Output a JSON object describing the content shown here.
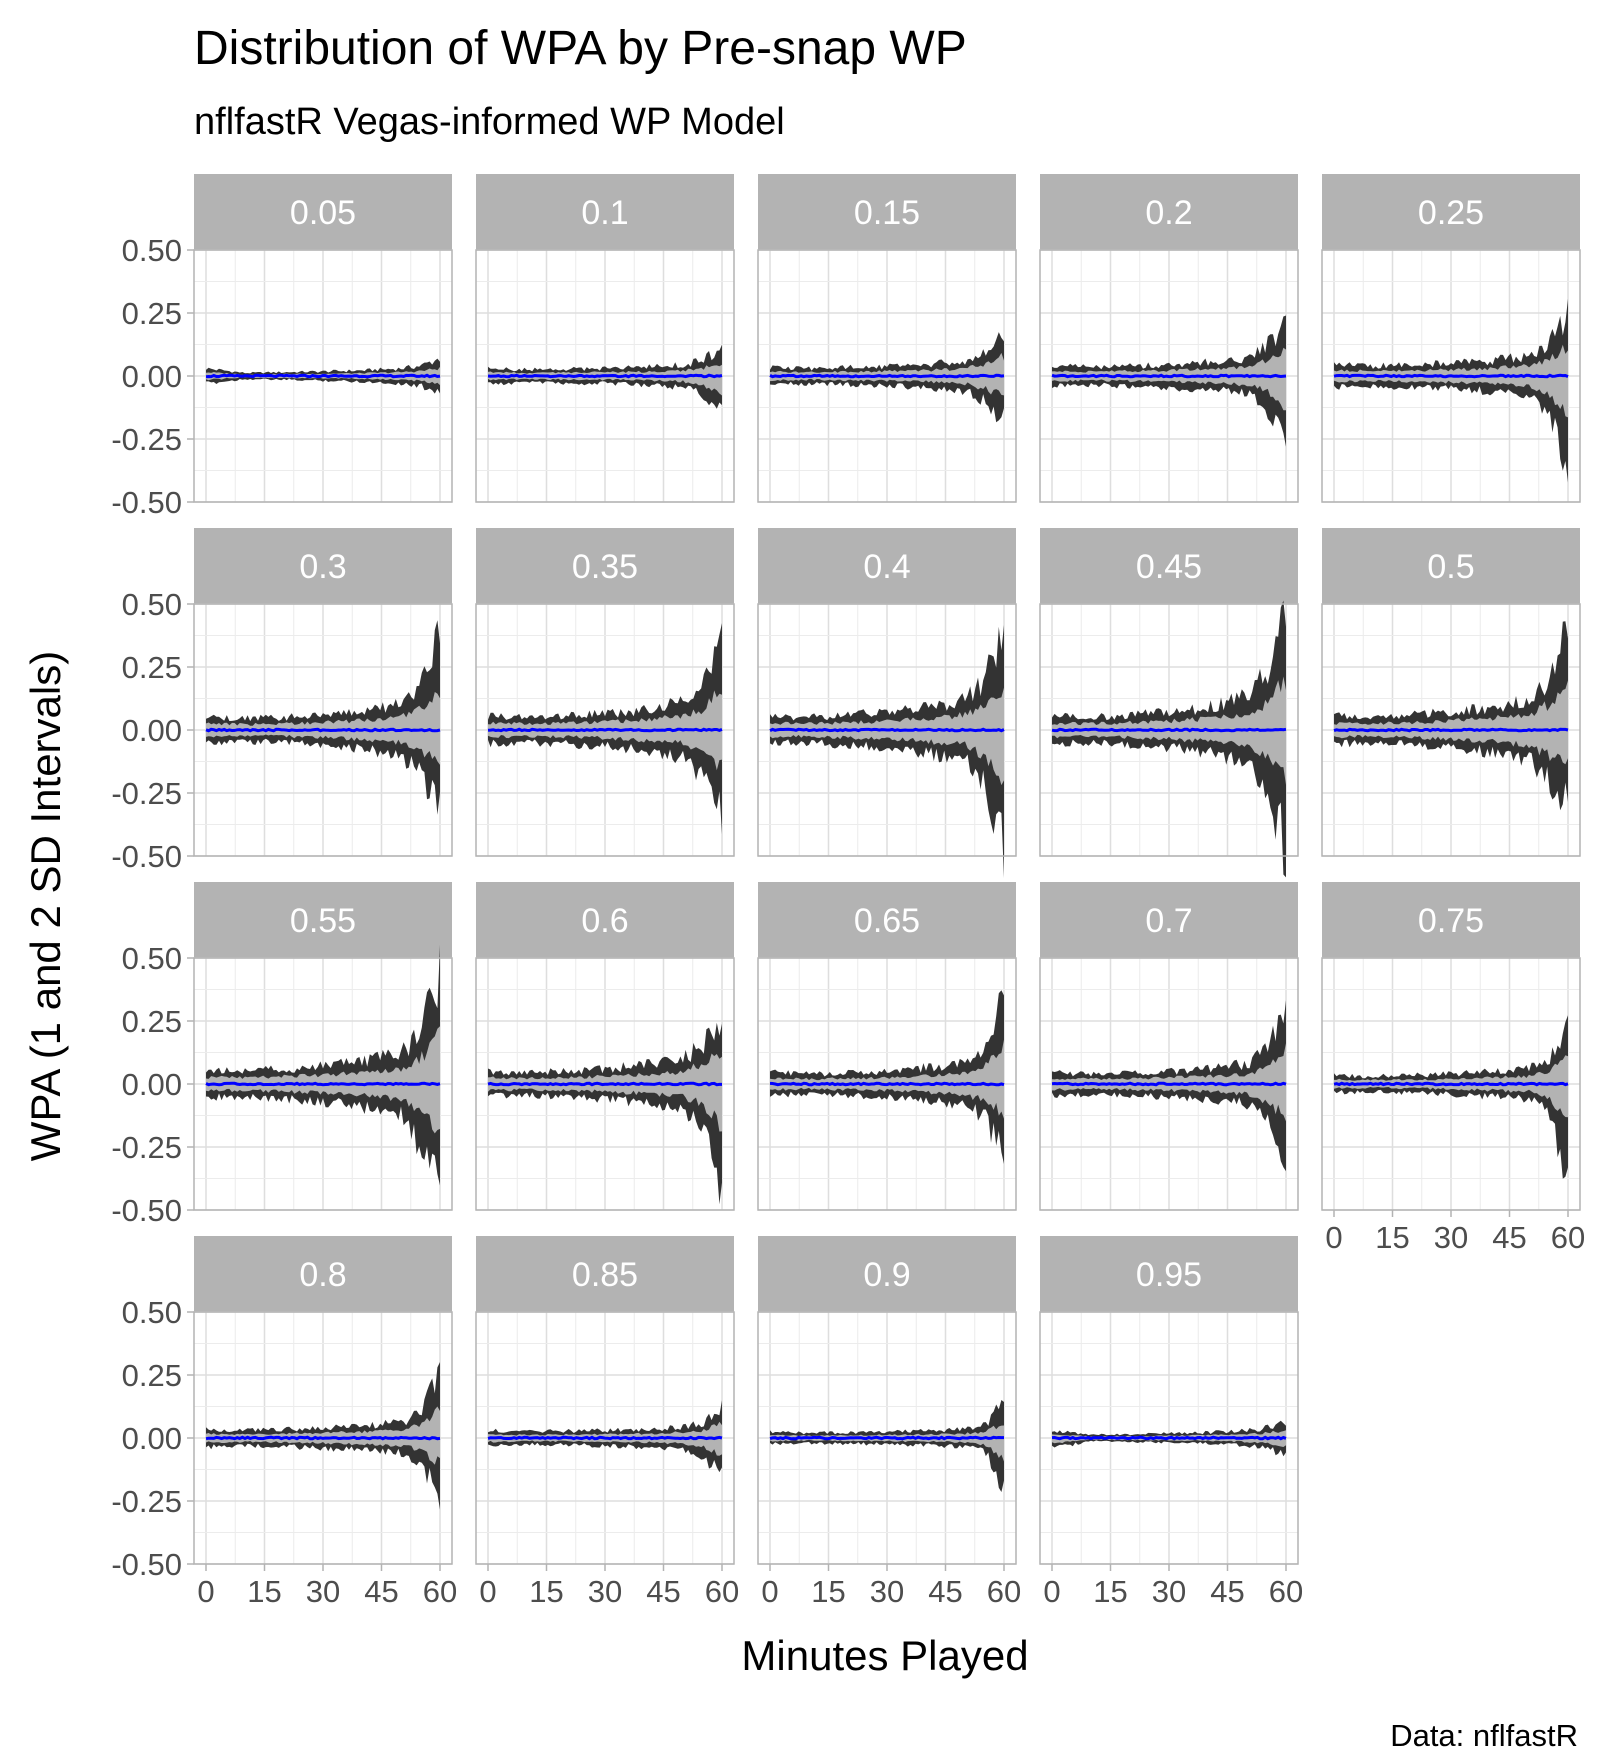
{
  "chart": {
    "title": "Distribution of WPA by Pre-snap WP",
    "subtitle": "nflfastR Vegas-informed WP Model",
    "caption": "Data: nflfastR",
    "xlabel": "Minutes Played",
    "ylabel": "WPA (1 and 2 SD Intervals)",
    "x_ticks": [
      "0",
      "15",
      "30",
      "45",
      "60"
    ],
    "y_ticks": [
      "0.50",
      "0.25",
      "0.00",
      "-0.25",
      "-0.50"
    ]
  },
  "chart_data": {
    "type": "area",
    "facet_by": "pre-snap WP",
    "xlim": [
      0,
      60
    ],
    "ylim": [
      -0.5,
      0.5
    ],
    "x_ticks": [
      0,
      15,
      30,
      45,
      60
    ],
    "y_ticks": [
      0.5,
      0.25,
      0,
      -0.25,
      -0.5
    ],
    "grid": true,
    "colors": {
      "two_sd_band": "#333333",
      "one_sd_band": "#b3b3b3",
      "mean_line": "#0000ff",
      "strip": "#b3b3b3"
    },
    "x": [
      0,
      10,
      20,
      30,
      40,
      50,
      55,
      60
    ],
    "panels": [
      {
        "label": "0.05",
        "mean": [
          0,
          0,
          0,
          0,
          0,
          0,
          0,
          0
        ],
        "upper_2sd": [
          0.03,
          0.012,
          0.015,
          0.018,
          0.022,
          0.03,
          0.04,
          0.07
        ],
        "lower_2sd": [
          -0.03,
          -0.012,
          -0.015,
          -0.018,
          -0.022,
          -0.03,
          -0.04,
          -0.06
        ],
        "upper_1sd": [
          0.015,
          0.006,
          0.008,
          0.009,
          0.011,
          0.015,
          0.02,
          0.03
        ],
        "lower_1sd": [
          -0.015,
          -0.006,
          -0.008,
          -0.009,
          -0.011,
          -0.015,
          -0.02,
          -0.03
        ]
      },
      {
        "label": "0.1",
        "mean": [
          0,
          0,
          0,
          0,
          0,
          0,
          0,
          0
        ],
        "upper_2sd": [
          0.03,
          0.025,
          0.028,
          0.03,
          0.035,
          0.045,
          0.06,
          0.11
        ],
        "lower_2sd": [
          -0.03,
          -0.025,
          -0.028,
          -0.03,
          -0.035,
          -0.045,
          -0.07,
          -0.15
        ],
        "upper_1sd": [
          0.015,
          0.012,
          0.014,
          0.015,
          0.017,
          0.022,
          0.03,
          0.05
        ],
        "lower_1sd": [
          -0.015,
          -0.012,
          -0.014,
          -0.015,
          -0.017,
          -0.022,
          -0.035,
          -0.07
        ]
      },
      {
        "label": "0.15",
        "mean": [
          0,
          0,
          0,
          0,
          0,
          0,
          0,
          0
        ],
        "upper_2sd": [
          0.035,
          0.03,
          0.035,
          0.038,
          0.045,
          0.06,
          0.09,
          0.18
        ],
        "lower_2sd": [
          -0.035,
          -0.03,
          -0.035,
          -0.038,
          -0.045,
          -0.06,
          -0.1,
          -0.17
        ],
        "upper_1sd": [
          0.017,
          0.015,
          0.017,
          0.019,
          0.022,
          0.03,
          0.045,
          0.08
        ],
        "lower_1sd": [
          -0.017,
          -0.015,
          -0.017,
          -0.019,
          -0.022,
          -0.03,
          -0.05,
          -0.08
        ]
      },
      {
        "label": "0.2",
        "mean": [
          0,
          0,
          0,
          0,
          0,
          0,
          0,
          0
        ],
        "upper_2sd": [
          0.04,
          0.035,
          0.04,
          0.045,
          0.055,
          0.07,
          0.12,
          0.22
        ],
        "lower_2sd": [
          -0.04,
          -0.035,
          -0.04,
          -0.045,
          -0.055,
          -0.07,
          -0.13,
          -0.3
        ],
        "upper_1sd": [
          0.02,
          0.017,
          0.02,
          0.022,
          0.027,
          0.035,
          0.06,
          0.1
        ],
        "lower_1sd": [
          -0.02,
          -0.017,
          -0.02,
          -0.022,
          -0.027,
          -0.035,
          -0.06,
          -0.13
        ]
      },
      {
        "label": "0.25",
        "mean": [
          0,
          0,
          0,
          0,
          0,
          0,
          0,
          0
        ],
        "upper_2sd": [
          0.045,
          0.04,
          0.045,
          0.05,
          0.06,
          0.08,
          0.13,
          0.26
        ],
        "lower_2sd": [
          -0.045,
          -0.04,
          -0.045,
          -0.05,
          -0.06,
          -0.08,
          -0.15,
          -0.38
        ],
        "upper_1sd": [
          0.022,
          0.02,
          0.022,
          0.025,
          0.03,
          0.04,
          0.06,
          0.12
        ],
        "lower_1sd": [
          -0.022,
          -0.02,
          -0.022,
          -0.025,
          -0.03,
          -0.04,
          -0.07,
          -0.15
        ]
      },
      {
        "label": "0.3",
        "mean": [
          0,
          0,
          0,
          0,
          0,
          0,
          0,
          0
        ],
        "upper_2sd": [
          0.05,
          0.045,
          0.05,
          0.06,
          0.075,
          0.1,
          0.16,
          0.38
        ],
        "lower_2sd": [
          -0.05,
          -0.045,
          -0.05,
          -0.06,
          -0.075,
          -0.1,
          -0.17,
          -0.3
        ],
        "upper_1sd": [
          0.025,
          0.022,
          0.025,
          0.03,
          0.037,
          0.05,
          0.08,
          0.16
        ],
        "lower_1sd": [
          -0.025,
          -0.022,
          -0.025,
          -0.03,
          -0.037,
          -0.05,
          -0.08,
          -0.14
        ]
      },
      {
        "label": "0.35",
        "mean": [
          0,
          0,
          0,
          0,
          0,
          0,
          0,
          0
        ],
        "upper_2sd": [
          0.055,
          0.05,
          0.055,
          0.065,
          0.08,
          0.11,
          0.17,
          0.41
        ],
        "lower_2sd": [
          -0.055,
          -0.05,
          -0.055,
          -0.065,
          -0.08,
          -0.11,
          -0.18,
          -0.35
        ],
        "upper_1sd": [
          0.027,
          0.025,
          0.027,
          0.032,
          0.04,
          0.055,
          0.085,
          0.17
        ],
        "lower_1sd": [
          -0.027,
          -0.025,
          -0.027,
          -0.032,
          -0.04,
          -0.055,
          -0.09,
          -0.15
        ]
      },
      {
        "label": "0.4",
        "mean": [
          0,
          0,
          0,
          0,
          0,
          0,
          0,
          0
        ],
        "upper_2sd": [
          0.055,
          0.05,
          0.06,
          0.07,
          0.09,
          0.12,
          0.2,
          0.38
        ],
        "lower_2sd": [
          -0.055,
          -0.05,
          -0.06,
          -0.07,
          -0.09,
          -0.12,
          -0.2,
          -0.48
        ],
        "upper_1sd": [
          0.027,
          0.025,
          0.03,
          0.035,
          0.045,
          0.06,
          0.1,
          0.16
        ],
        "lower_1sd": [
          -0.027,
          -0.025,
          -0.03,
          -0.035,
          -0.045,
          -0.06,
          -0.1,
          -0.2
        ]
      },
      {
        "label": "0.45",
        "mean": [
          0,
          0,
          0,
          0,
          0,
          0,
          0,
          0
        ],
        "upper_2sd": [
          0.055,
          0.05,
          0.06,
          0.07,
          0.09,
          0.13,
          0.22,
          0.46
        ],
        "lower_2sd": [
          -0.055,
          -0.05,
          -0.06,
          -0.07,
          -0.09,
          -0.13,
          -0.22,
          -0.48
        ],
        "upper_1sd": [
          0.027,
          0.025,
          0.03,
          0.035,
          0.045,
          0.065,
          0.1,
          0.2
        ],
        "lower_1sd": [
          -0.027,
          -0.025,
          -0.03,
          -0.035,
          -0.045,
          -0.065,
          -0.1,
          -0.2
        ]
      },
      {
        "label": "0.5",
        "mean": [
          0,
          0,
          0,
          0,
          0,
          0,
          0,
          0
        ],
        "upper_2sd": [
          0.055,
          0.05,
          0.06,
          0.07,
          0.09,
          0.12,
          0.2,
          0.46
        ],
        "lower_2sd": [
          -0.055,
          -0.05,
          -0.06,
          -0.07,
          -0.09,
          -0.12,
          -0.2,
          -0.28
        ],
        "upper_1sd": [
          0.027,
          0.025,
          0.03,
          0.035,
          0.045,
          0.06,
          0.1,
          0.2
        ],
        "lower_1sd": [
          -0.027,
          -0.025,
          -0.03,
          -0.035,
          -0.045,
          -0.06,
          -0.1,
          -0.12
        ]
      },
      {
        "label": "0.55",
        "mean": [
          0,
          0,
          0,
          0,
          0,
          0,
          0,
          0
        ],
        "upper_2sd": [
          0.055,
          0.05,
          0.06,
          0.07,
          0.09,
          0.12,
          0.2,
          0.45
        ],
        "lower_2sd": [
          -0.055,
          -0.05,
          -0.06,
          -0.07,
          -0.09,
          -0.12,
          -0.25,
          -0.4
        ],
        "upper_1sd": [
          0.027,
          0.025,
          0.03,
          0.035,
          0.045,
          0.06,
          0.1,
          0.2
        ],
        "lower_1sd": [
          -0.027,
          -0.025,
          -0.03,
          -0.035,
          -0.045,
          -0.06,
          -0.1,
          -0.18
        ]
      },
      {
        "label": "0.6",
        "mean": [
          0,
          0,
          0,
          0,
          0,
          0,
          0,
          0
        ],
        "upper_2sd": [
          0.05,
          0.045,
          0.05,
          0.06,
          0.075,
          0.1,
          0.16,
          0.27
        ],
        "lower_2sd": [
          -0.05,
          -0.045,
          -0.05,
          -0.06,
          -0.075,
          -0.1,
          -0.17,
          -0.4
        ],
        "upper_1sd": [
          0.025,
          0.022,
          0.025,
          0.03,
          0.037,
          0.05,
          0.08,
          0.12
        ],
        "lower_1sd": [
          -0.025,
          -0.022,
          -0.025,
          -0.03,
          -0.037,
          -0.05,
          -0.08,
          -0.17
        ]
      },
      {
        "label": "0.65",
        "mean": [
          0,
          0,
          0,
          0,
          0,
          0,
          0,
          0
        ],
        "upper_2sd": [
          0.045,
          0.04,
          0.045,
          0.05,
          0.065,
          0.085,
          0.13,
          0.36
        ],
        "lower_2sd": [
          -0.045,
          -0.04,
          -0.045,
          -0.05,
          -0.065,
          -0.085,
          -0.13,
          -0.28
        ],
        "upper_1sd": [
          0.022,
          0.02,
          0.022,
          0.025,
          0.032,
          0.042,
          0.065,
          0.15
        ],
        "lower_1sd": [
          -0.022,
          -0.02,
          -0.022,
          -0.025,
          -0.032,
          -0.042,
          -0.065,
          -0.12
        ]
      },
      {
        "label": "0.7",
        "mean": [
          0,
          0,
          0,
          0,
          0,
          0,
          0,
          0
        ],
        "upper_2sd": [
          0.045,
          0.04,
          0.045,
          0.05,
          0.06,
          0.08,
          0.13,
          0.32
        ],
        "lower_2sd": [
          -0.045,
          -0.04,
          -0.045,
          -0.05,
          -0.06,
          -0.08,
          -0.14,
          -0.3
        ],
        "upper_1sd": [
          0.022,
          0.02,
          0.022,
          0.025,
          0.03,
          0.04,
          0.065,
          0.14
        ],
        "lower_1sd": [
          -0.022,
          -0.02,
          -0.022,
          -0.025,
          -0.03,
          -0.04,
          -0.07,
          -0.13
        ]
      },
      {
        "label": "0.75",
        "mean": [
          0,
          0,
          0,
          0,
          0,
          0,
          0,
          0
        ],
        "upper_2sd": [
          0.035,
          0.03,
          0.035,
          0.04,
          0.05,
          0.06,
          0.1,
          0.25
        ],
        "lower_2sd": [
          -0.035,
          -0.03,
          -0.035,
          -0.04,
          -0.05,
          -0.06,
          -0.1,
          -0.4
        ],
        "upper_1sd": [
          0.017,
          0.015,
          0.017,
          0.02,
          0.025,
          0.03,
          0.05,
          0.11
        ],
        "lower_1sd": [
          -0.017,
          -0.015,
          -0.017,
          -0.02,
          -0.025,
          -0.03,
          -0.05,
          -0.16
        ]
      },
      {
        "label": "0.8",
        "mean": [
          0,
          0,
          0,
          0,
          0,
          0,
          0,
          0
        ],
        "upper_2sd": [
          0.035,
          0.03,
          0.035,
          0.04,
          0.05,
          0.06,
          0.1,
          0.28
        ],
        "lower_2sd": [
          -0.035,
          -0.03,
          -0.035,
          -0.04,
          -0.05,
          -0.06,
          -0.1,
          -0.22
        ],
        "upper_1sd": [
          0.017,
          0.015,
          0.017,
          0.02,
          0.025,
          0.03,
          0.05,
          0.12
        ],
        "lower_1sd": [
          -0.017,
          -0.015,
          -0.017,
          -0.02,
          -0.025,
          -0.03,
          -0.05,
          -0.1
        ]
      },
      {
        "label": "0.85",
        "mean": [
          0,
          0,
          0,
          0,
          0,
          0,
          0,
          0
        ],
        "upper_2sd": [
          0.03,
          0.025,
          0.028,
          0.03,
          0.035,
          0.045,
          0.06,
          0.13
        ],
        "lower_2sd": [
          -0.03,
          -0.025,
          -0.028,
          -0.03,
          -0.035,
          -0.045,
          -0.07,
          -0.15
        ],
        "upper_1sd": [
          0.015,
          0.012,
          0.014,
          0.015,
          0.017,
          0.022,
          0.03,
          0.06
        ],
        "lower_1sd": [
          -0.015,
          -0.012,
          -0.014,
          -0.015,
          -0.017,
          -0.022,
          -0.035,
          -0.07
        ]
      },
      {
        "label": "0.9",
        "mean": [
          0,
          0,
          0,
          0,
          0,
          0,
          0,
          0
        ],
        "upper_2sd": [
          0.025,
          0.02,
          0.022,
          0.025,
          0.028,
          0.035,
          0.05,
          0.14
        ],
        "lower_2sd": [
          -0.025,
          -0.02,
          -0.022,
          -0.025,
          -0.028,
          -0.035,
          -0.05,
          -0.2
        ],
        "upper_1sd": [
          0.012,
          0.01,
          0.011,
          0.012,
          0.014,
          0.017,
          0.025,
          0.06
        ],
        "lower_1sd": [
          -0.012,
          -0.01,
          -0.011,
          -0.012,
          -0.014,
          -0.017,
          -0.025,
          -0.08
        ]
      },
      {
        "label": "0.95",
        "mean": [
          0,
          0,
          0,
          0,
          0,
          0,
          0,
          0
        ],
        "upper_2sd": [
          0.03,
          0.012,
          0.015,
          0.018,
          0.022,
          0.03,
          0.04,
          0.06
        ],
        "lower_2sd": [
          -0.04,
          -0.012,
          -0.015,
          -0.018,
          -0.022,
          -0.03,
          -0.04,
          -0.07
        ],
        "upper_1sd": [
          0.015,
          0.006,
          0.008,
          0.009,
          0.011,
          0.015,
          0.02,
          0.03
        ],
        "lower_1sd": [
          -0.02,
          -0.006,
          -0.008,
          -0.009,
          -0.011,
          -0.015,
          -0.02,
          -0.03
        ]
      }
    ]
  }
}
